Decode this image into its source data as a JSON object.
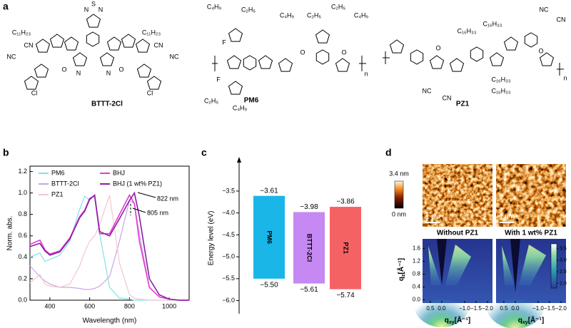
{
  "panel_labels": [
    "a",
    "b",
    "c",
    "d"
  ],
  "structures": [
    {
      "name": "BTTT-2Cl",
      "labels": [
        "N",
        "S",
        "N",
        "C₁₁H₂₃",
        "C₁₁H₂₃",
        "N",
        "N",
        "NC",
        "CN",
        "O",
        "O",
        "CN",
        "NC",
        "Cl",
        "Cl"
      ]
    },
    {
      "name": "PM6",
      "labels": [
        "C₄H₉",
        "C₂H₅",
        "F",
        "F",
        "C₂H₅",
        "C₄H₉",
        "C₄H₉",
        "C₂H₅",
        "C₂H₅",
        "C₄H₉",
        "O",
        "O",
        "n"
      ]
    },
    {
      "name": "PZ1",
      "labels": [
        "C₁₆H₃₃",
        "C₁₆H₃₃",
        "C₁₆H₃₃",
        "C₁₆H₃₃",
        "NC",
        "CN",
        "O",
        "O",
        "NC",
        "CN",
        "n"
      ]
    }
  ],
  "afm": {
    "scale_max": "3.4 nm",
    "scale_min": "0 nm",
    "scale_bar": "1 µm"
  },
  "chart_data": [
    {
      "type": "line",
      "xlabel": "Wavelength (nm)",
      "ylabel": "Norm. abs.",
      "xlim": [
        300,
        1100
      ],
      "ylim": [
        0,
        1.25
      ],
      "xticks": [
        400,
        600,
        800,
        1000
      ],
      "yticks": [
        {
          "value": 0,
          "label": "0.0"
        },
        0.2,
        0.4,
        0.6,
        0.8,
        {
          "value": 1,
          "label": "1.0"
        },
        1.2
      ],
      "x": [
        300,
        350,
        375,
        400,
        450,
        500,
        550,
        575,
        600,
        625,
        650,
        700,
        750,
        800,
        825,
        850,
        900,
        950,
        1000,
        1050,
        1100
      ],
      "series": [
        {
          "name": "PM6",
          "color": "#7fe3e6",
          "values": [
            0.4,
            0.44,
            0.36,
            0.38,
            0.42,
            0.55,
            0.85,
            0.97,
            0.93,
            0.98,
            0.62,
            0.12,
            0.02,
            0.01,
            0,
            0,
            0,
            0,
            0,
            0,
            0
          ]
        },
        {
          "name": "BTTT-2Cl",
          "color": "#c7a6e6",
          "values": [
            0.32,
            0.22,
            0.18,
            0.15,
            0.12,
            0.12,
            0.11,
            0.1,
            0.1,
            0.11,
            0.13,
            0.22,
            0.55,
            0.93,
            0.9,
            0.62,
            0.12,
            0.03,
            0.01,
            0,
            0
          ]
        },
        {
          "name": "PZ1",
          "color": "#f2c6cf",
          "values": [
            0.16,
            0.24,
            0.15,
            0.13,
            0.12,
            0.15,
            0.32,
            0.45,
            0.55,
            0.6,
            0.7,
            0.98,
            0.35,
            0.05,
            0.02,
            0.01,
            0,
            0,
            0,
            0,
            0
          ]
        },
        {
          "name": "BHJ",
          "color": "#e43ad6",
          "values": [
            0.52,
            0.56,
            0.47,
            0.43,
            0.46,
            0.58,
            0.78,
            0.84,
            0.95,
            0.97,
            0.62,
            0.62,
            0.8,
            0.98,
            0.9,
            0.55,
            0.12,
            0.03,
            0.01,
            0,
            0
          ]
        },
        {
          "name": "BHJ (1 wt% PZ1)",
          "color": "#8a1fa3",
          "values": [
            0.5,
            0.53,
            0.46,
            0.42,
            0.45,
            0.57,
            0.77,
            0.83,
            0.94,
            0.98,
            0.64,
            0.6,
            0.76,
            0.93,
            1.0,
            0.78,
            0.2,
            0.05,
            0.01,
            0,
            0
          ]
        }
      ],
      "annotations": [
        "822 nm",
        "805 nm"
      ]
    },
    {
      "type": "floating_bar",
      "ylabel": "Energy level (eV)",
      "ylim": [
        -6.3,
        -2.85
      ],
      "yticks": [
        {
          "value": -3.5,
          "label": "−3.5"
        },
        {
          "value": -4.0,
          "label": "−4.0"
        },
        {
          "value": -4.5,
          "label": "−4.5"
        },
        {
          "value": -5.0,
          "label": "−5.0"
        },
        {
          "value": -5.5,
          "label": "−5.5"
        },
        {
          "value": -6.0,
          "label": "−6.0"
        }
      ],
      "categories": [
        "PM6",
        "BTTT-2Cl",
        "PZ1"
      ],
      "colors": [
        "#1ab6e8",
        "#c688f2",
        "#f46264"
      ],
      "top": {
        "values": [
          -3.61,
          -3.98,
          -3.86
        ],
        "value_labels": [
          "−3.61",
          "−3.98",
          "−3.86"
        ]
      },
      "bottom": {
        "values": [
          -5.5,
          -5.61,
          -5.74
        ],
        "value_labels": [
          "−5.50",
          "−5.61",
          "−5.74"
        ]
      }
    },
    {
      "type": "giwaxs",
      "titles": [
        "Without PZ1",
        "With 1 wt% PZ1"
      ],
      "xlabel": {
        "symbol": "q",
        "subscript": "xy",
        "unit": "[Å⁻¹]"
      },
      "ylabel": {
        "symbol": "q",
        "subscript": "z",
        "unit": "[Å⁻¹]"
      },
      "xlim": [
        0.84,
        -2.22
      ],
      "ylim": [
        -0.1,
        1.9
      ],
      "xticks": [
        0.5,
        {
          "value": 0,
          "label": "0.0"
        },
        {
          "value": -1,
          "label": "−1.0"
        },
        {
          "value": -1.5,
          "label": "−1.5"
        },
        {
          "value": -2,
          "label": "−2.0"
        }
      ],
      "yticks": [
        {
          "value": 0,
          "label": "0.0"
        },
        0.4,
        0.8,
        1.2,
        1.6
      ],
      "clim": [
        1.8,
        3.7
      ],
      "cticks": [
        3.5,
        {
          "value": 3,
          "label": "3.0"
        },
        2.5,
        {
          "value": 2,
          "label": "2.0"
        }
      ]
    }
  ]
}
